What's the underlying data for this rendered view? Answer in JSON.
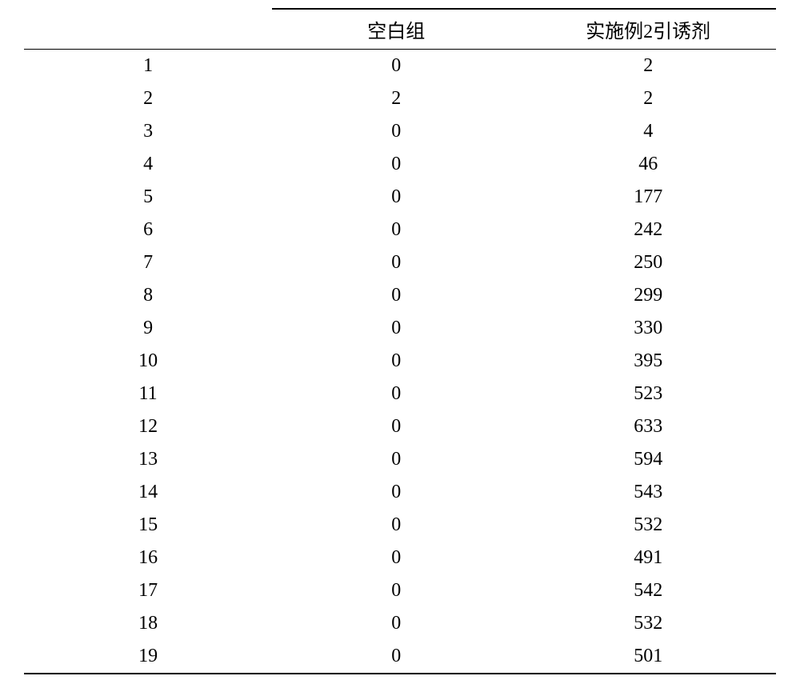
{
  "table": {
    "type": "table",
    "background_color": "#ffffff",
    "text_color": "#000000",
    "font_size_pt": 18,
    "rule_color": "#000000",
    "columns": {
      "index_label": "",
      "group_a": "空白组",
      "group_b": "实施例2引诱剂"
    },
    "rows": [
      {
        "idx": "1",
        "a": "0",
        "b": "2"
      },
      {
        "idx": "2",
        "a": "2",
        "b": "2"
      },
      {
        "idx": "3",
        "a": "0",
        "b": "4"
      },
      {
        "idx": "4",
        "a": "0",
        "b": "46"
      },
      {
        "idx": "5",
        "a": "0",
        "b": "177"
      },
      {
        "idx": "6",
        "a": "0",
        "b": "242"
      },
      {
        "idx": "7",
        "a": "0",
        "b": "250"
      },
      {
        "idx": "8",
        "a": "0",
        "b": "299"
      },
      {
        "idx": "9",
        "a": "0",
        "b": "330"
      },
      {
        "idx": "10",
        "a": "0",
        "b": "395"
      },
      {
        "idx": "11",
        "a": "0",
        "b": "523"
      },
      {
        "idx": "12",
        "a": "0",
        "b": "633"
      },
      {
        "idx": "13",
        "a": "0",
        "b": "594"
      },
      {
        "idx": "14",
        "a": "0",
        "b": "543"
      },
      {
        "idx": "15",
        "a": "0",
        "b": "532"
      },
      {
        "idx": "16",
        "a": "0",
        "b": "491"
      },
      {
        "idx": "17",
        "a": "0",
        "b": "542"
      },
      {
        "idx": "18",
        "a": "0",
        "b": "532"
      },
      {
        "idx": "19",
        "a": "0",
        "b": "501"
      }
    ]
  }
}
